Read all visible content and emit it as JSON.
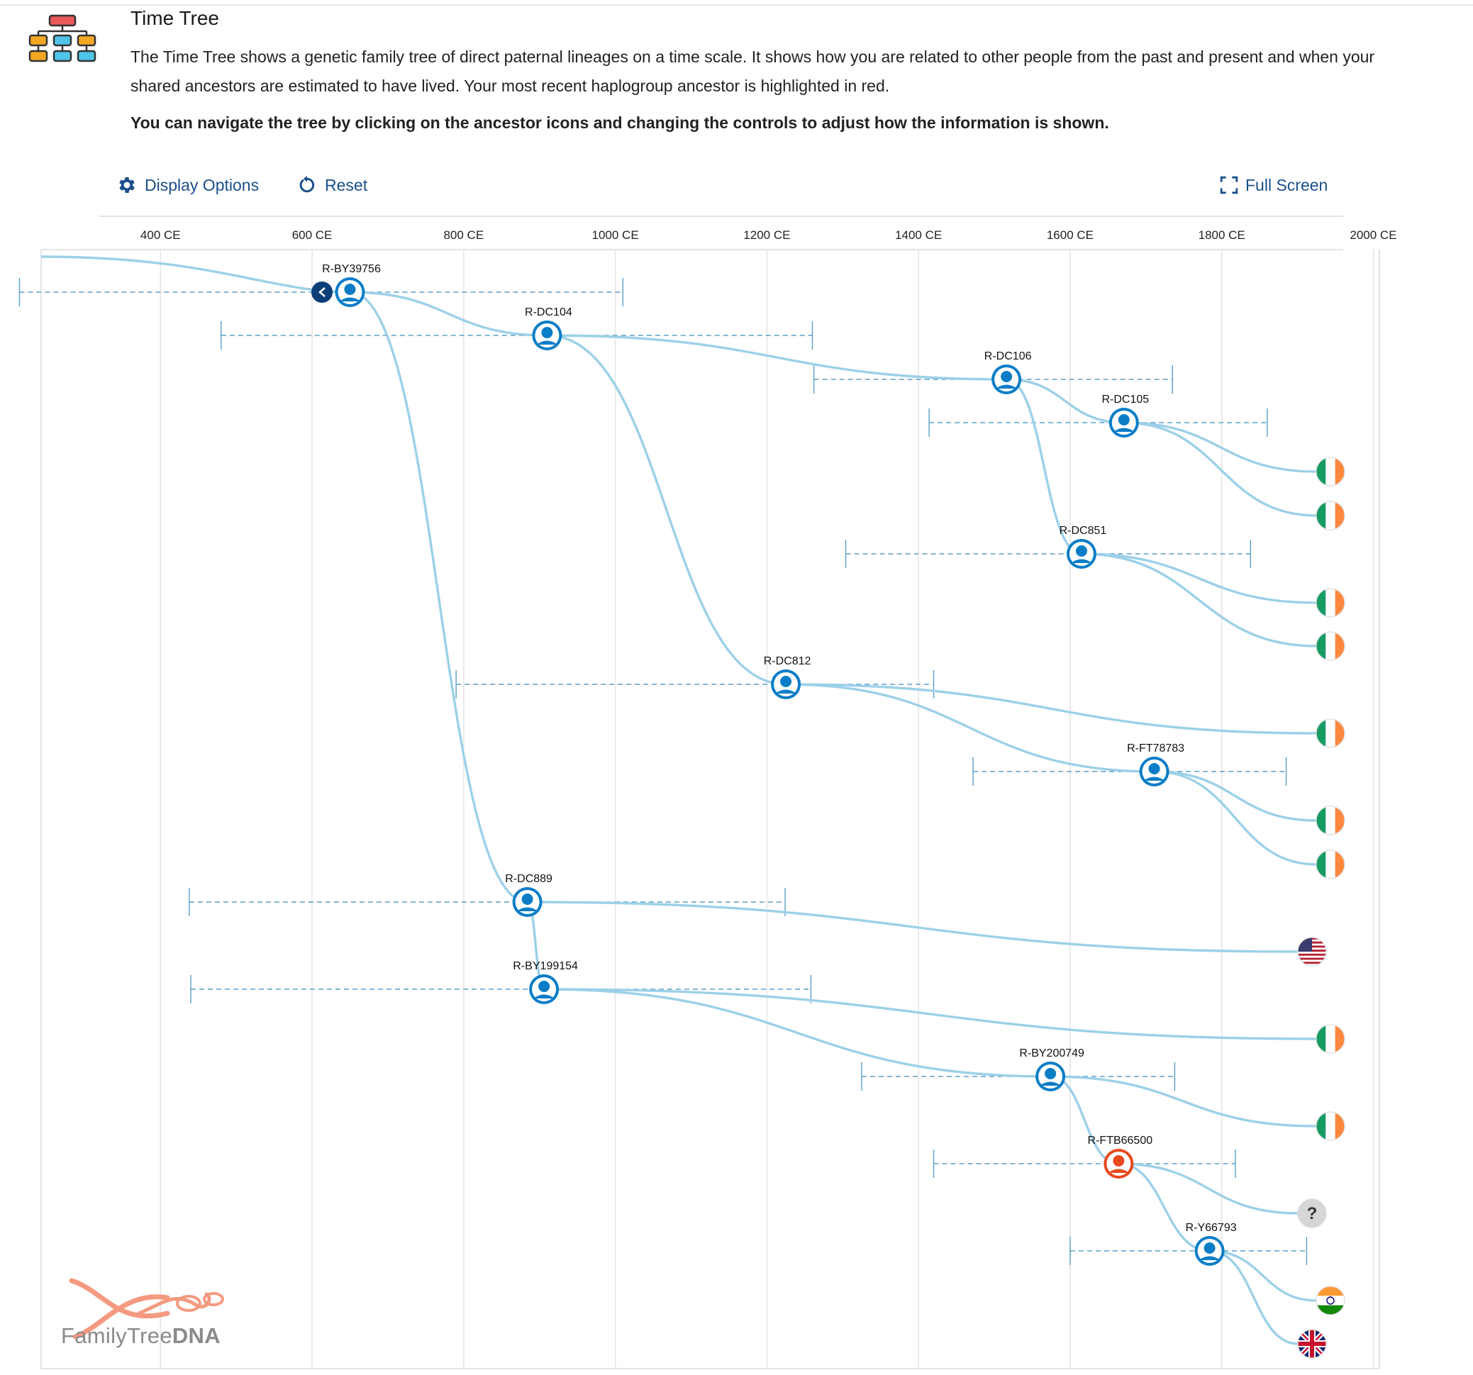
{
  "header": {
    "title": "Time Tree",
    "description": "The Time Tree shows a genetic family tree of direct paternal lineages on a time scale. It shows how you are related to other people from the past and present and when your shared ancestors are estimated to have lived. Your most recent haplogroup ancestor is highlighted in red.",
    "navigation_hint": "You can navigate the tree by clicking on the ancestor icons and changing the controls to adjust how the information is shown."
  },
  "toolbar": {
    "display_options_label": "Display Options",
    "reset_label": "Reset",
    "full_screen_label": "Full Screen"
  },
  "axis": {
    "top_ticks": [
      "400 CE",
      "600 CE",
      "800 CE",
      "1000 CE",
      "1200 CE",
      "1400 CE",
      "1600 CE",
      "1800 CE",
      "2000 CE"
    ],
    "year_range": [
      222,
      2022
    ]
  },
  "colors": {
    "accent": "#1b4f8a",
    "node_blue": "#0b7dc7",
    "node_red": "#e8491d",
    "branch": "#9cd0e8",
    "ci_line": "#5a9fc6"
  },
  "tree": {
    "back_button_icon": "chevron-left-icon",
    "nodes": [
      {
        "id": "n1",
        "label": "R-BY39756",
        "year": 650,
        "ci": [
          214,
          1010
        ],
        "highlight": false
      },
      {
        "id": "n2",
        "label": "R-DC104",
        "year": 910,
        "ci": [
          480,
          1260
        ],
        "highlight": false
      },
      {
        "id": "n3",
        "label": "R-DC106",
        "year": 1516,
        "ci": [
          1262,
          1735
        ],
        "highlight": false
      },
      {
        "id": "n4",
        "label": "R-DC105",
        "year": 1671,
        "ci": [
          1414,
          1860
        ],
        "highlight": false
      },
      {
        "id": "n5",
        "label": "R-DC851",
        "year": 1615,
        "ci": [
          1304,
          1838
        ],
        "highlight": false
      },
      {
        "id": "n6",
        "label": "R-DC812",
        "year": 1225,
        "ci": [
          790,
          1420
        ],
        "highlight": false
      },
      {
        "id": "n7",
        "label": "R-FT78783",
        "year": 1711,
        "ci": [
          1472,
          1885
        ],
        "highlight": false
      },
      {
        "id": "n8",
        "label": "R-DC889",
        "year": 884,
        "ci": [
          438,
          1224
        ],
        "highlight": false
      },
      {
        "id": "n9",
        "label": "R-BY199154",
        "year": 906,
        "ci": [
          440,
          1258
        ],
        "highlight": false
      },
      {
        "id": "n10",
        "label": "R-BY200749",
        "year": 1574,
        "ci": [
          1325,
          1738
        ],
        "highlight": false
      },
      {
        "id": "n11",
        "label": "R-FTB66500",
        "year": 1664,
        "ci": [
          1420,
          1818
        ],
        "highlight": true
      },
      {
        "id": "n12",
        "label": "R-Y66793",
        "year": 1784,
        "ci": [
          1600,
          1912
        ],
        "highlight": false
      }
    ],
    "tips": [
      {
        "country": "Ireland"
      },
      {
        "country": "Ireland"
      },
      {
        "country": "Ireland"
      },
      {
        "country": "Ireland"
      },
      {
        "country": "Ireland"
      },
      {
        "country": "Ireland"
      },
      {
        "country": "Ireland"
      },
      {
        "country": "United States"
      },
      {
        "country": "Ireland"
      },
      {
        "country": "Ireland"
      },
      {
        "country": "Unknown",
        "symbol": "?"
      },
      {
        "country": "India"
      },
      {
        "country": "United Kingdom"
      }
    ]
  },
  "logo": {
    "text_light": "FamilyTree",
    "text_bold": "DNA"
  }
}
